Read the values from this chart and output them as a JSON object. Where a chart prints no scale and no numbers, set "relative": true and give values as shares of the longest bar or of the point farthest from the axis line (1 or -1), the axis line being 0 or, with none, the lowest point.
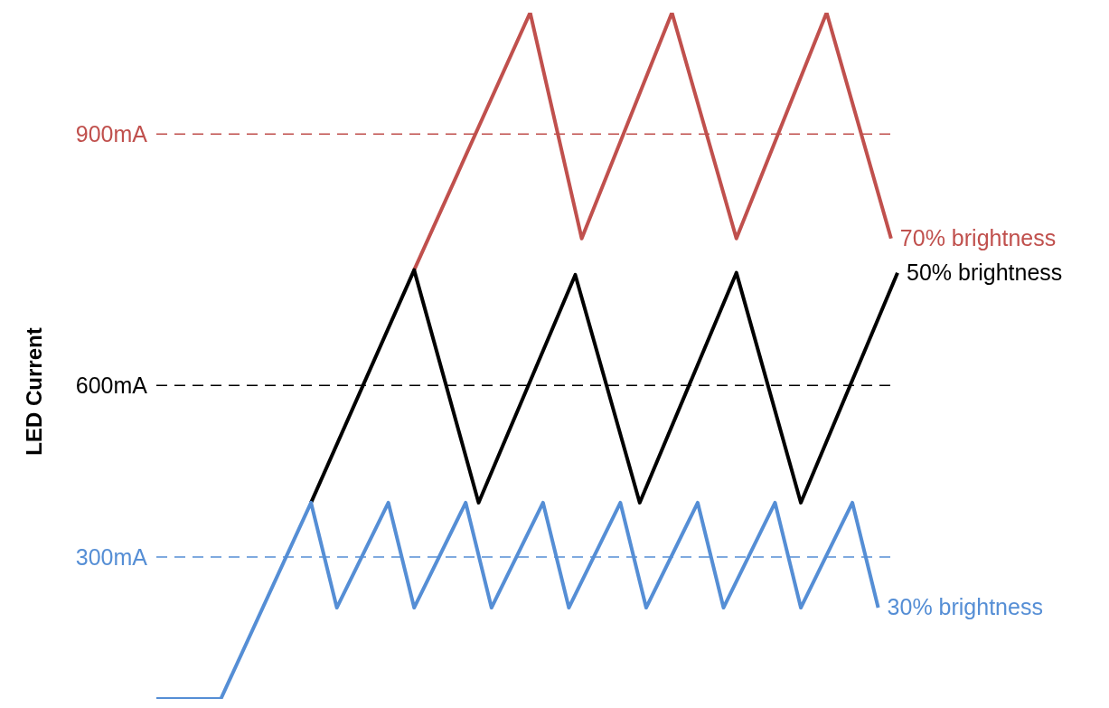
{
  "chart_data": {
    "type": "line",
    "annotations": [
      "LED Current"
    ],
    "relative": true,
    "categories": [
      null,
      null,
      null,
      null,
      null,
      null,
      null,
      null,
      null,
      null,
      null,
      null,
      null,
      null,
      null,
      null,
      null,
      null,
      null,
      null,
      null,
      null,
      null,
      null,
      null,
      null,
      null,
      null,
      null,
      null,
      null,
      null,
      null,
      null,
      null,
      null,
      null,
      null,
      null,
      null,
      null,
      null,
      null,
      null,
      null,
      null,
      null,
      null,
      null,
      null,
      null,
      null,
      null,
      null,
      null,
      null,
      null,
      null,
      null,
      null,
      null,
      null,
      null,
      null,
      null,
      null,
      null,
      null,
      null,
      null,
      null,
      null,
      null,
      null,
      null,
      null,
      null,
      null,
      null,
      null,
      null,
      null,
      null,
      null,
      null,
      null,
      null,
      null,
      null,
      null,
      null,
      null,
      null,
      null,
      null,
      null,
      null,
      null,
      null,
      null,
      null,
      null,
      null,
      null,
      null,
      null,
      null,
      null,
      null,
      null,
      null,
      null,
      null,
      null,
      null,
      null
    ],
    "series": [
      {
        "name": "70% brightness",
        "color": "#c0504d",
        "values": [
          null,
          null,
          null,
          null,
          null,
          null,
          null,
          null,
          null,
          null,
          null,
          null,
          null,
          null,
          null,
          null,
          null,
          null,
          null,
          null,
          null,
          null,
          null,
          null,
          null,
          null,
          null,
          null,
          null,
          null,
          null,
          null,
          null,
          null,
          null,
          null,
          null,
          null,
          null,
          null,
          0.625,
          null,
          null,
          null,
          null,
          null,
          null,
          null,
          null,
          null,
          null,
          null,
          null,
          null,
          null,
          null,
          null,
          null,
          1,
          null,
          null,
          null,
          null,
          null,
          null,
          null,
          0.671,
          null,
          null,
          null,
          null,
          null,
          null,
          null,
          null,
          null,
          null,
          null,
          null,
          null,
          1,
          null,
          null,
          null,
          null,
          null,
          null,
          null,
          null,
          null,
          0.671,
          null,
          null,
          null,
          null,
          null,
          null,
          null,
          null,
          null,
          null,
          null,
          null,
          null,
          1,
          null,
          null,
          null,
          null,
          null,
          null,
          null,
          null,
          null,
          0.671,
          null
        ]
      },
      {
        "name": "50% brightness",
        "color": "#000000",
        "values": [
          null,
          null,
          null,
          null,
          null,
          null,
          null,
          null,
          null,
          null,
          null,
          null,
          null,
          null,
          null,
          null,
          null,
          null,
          null,
          null,
          null,
          null,
          null,
          null,
          0.286,
          null,
          null,
          null,
          null,
          null,
          null,
          null,
          null,
          null,
          null,
          null,
          null,
          null,
          null,
          null,
          0.625,
          null,
          null,
          null,
          null,
          null,
          null,
          null,
          null,
          null,
          0.286,
          null,
          null,
          null,
          null,
          null,
          null,
          null,
          null,
          null,
          null,
          null,
          null,
          null,
          null,
          0.618,
          null,
          null,
          null,
          null,
          null,
          null,
          null,
          null,
          null,
          0.286,
          null,
          null,
          null,
          null,
          null,
          null,
          null,
          null,
          null,
          null,
          null,
          null,
          null,
          null,
          0.621,
          null,
          null,
          null,
          null,
          null,
          null,
          null,
          null,
          null,
          0.286,
          null,
          null,
          null,
          null,
          null,
          null,
          null,
          null,
          null,
          null,
          null,
          null,
          null,
          null,
          0.621
        ]
      },
      {
        "name": "30% brightness",
        "color": "#558ed5",
        "values": [
          0,
          null,
          null,
          null,
          null,
          null,
          null,
          null,
          null,
          null,
          0,
          null,
          null,
          null,
          null,
          null,
          null,
          null,
          null,
          null,
          null,
          null,
          null,
          null,
          0.286,
          null,
          null,
          null,
          0.133,
          null,
          null,
          null,
          null,
          null,
          null,
          null,
          0.286,
          null,
          null,
          null,
          0.133,
          null,
          null,
          null,
          null,
          null,
          null,
          null,
          0.286,
          null,
          null,
          null,
          0.133,
          null,
          null,
          null,
          null,
          null,
          null,
          null,
          0.286,
          null,
          null,
          null,
          0.133,
          null,
          null,
          null,
          null,
          null,
          null,
          null,
          0.286,
          null,
          null,
          null,
          0.133,
          null,
          null,
          null,
          null,
          null,
          null,
          null,
          0.286,
          null,
          null,
          null,
          0.133,
          null,
          null,
          null,
          null,
          null,
          null,
          null,
          0.286,
          null,
          null,
          null,
          0.133,
          null,
          null,
          null,
          null,
          null,
          null,
          null,
          0.286,
          null,
          null,
          null,
          0.133,
          null,
          null,
          null
        ]
      }
    ],
    "ref_lines": [
      {
        "axis": "y",
        "value": 0.823,
        "label": "900mA",
        "color": "#c0504d",
        "line_style": "dashed"
      },
      {
        "axis": "y",
        "value": 0.457,
        "label": "600mA",
        "color": "#000000",
        "line_style": "dashed"
      },
      {
        "axis": "y",
        "value": 0.207,
        "label": "300mA",
        "color": "#558ed5",
        "line_style": "dashed"
      }
    ]
  }
}
